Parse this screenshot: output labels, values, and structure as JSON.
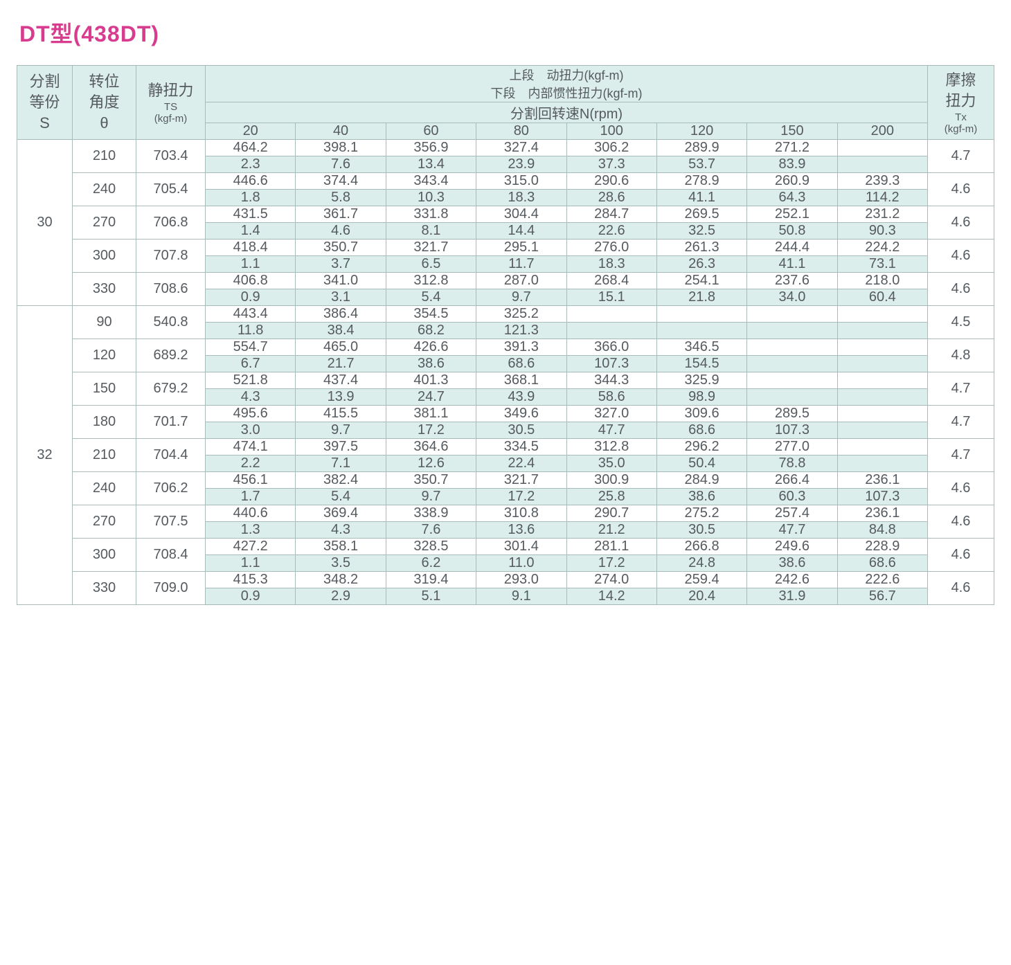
{
  "colors": {
    "title": "#d83c8f",
    "header_bg": "#dceeeb",
    "inertia_bg": "#dceeeb",
    "border": "#a7bbb9",
    "text": "#555a5f",
    "page_bg": "#ffffff"
  },
  "title": "DT型(438DT)",
  "headers": {
    "S_line1": "分割",
    "S_line2": "等份",
    "S_line3": "S",
    "theta_line1": "转位",
    "theta_line2": "角度",
    "theta_line3": "θ",
    "TS_line1": "静扭力",
    "TS_line2": "TS",
    "TS_line3": "(kgf-m)",
    "dyn_line1": "上段　动扭力(kgf-m)",
    "dyn_line2": "下段　内部惯性扭力(kgf-m)",
    "rpm_label": "分割回转速N(rpm)",
    "Tx_line1": "摩擦",
    "Tx_line2": "扭力",
    "Tx_line3": "Tx",
    "Tx_line4": "(kgf-m)"
  },
  "rpm_columns": [
    "20",
    "40",
    "60",
    "80",
    "100",
    "120",
    "150",
    "200"
  ],
  "groups": [
    {
      "S": "30",
      "rows": [
        {
          "theta": "210",
          "TS": "703.4",
          "Tx": "4.7",
          "dyn": [
            "464.2",
            "398.1",
            "356.9",
            "327.4",
            "306.2",
            "289.9",
            "271.2",
            ""
          ],
          "inertia": [
            "2.3",
            "7.6",
            "13.4",
            "23.9",
            "37.3",
            "53.7",
            "83.9",
            ""
          ]
        },
        {
          "theta": "240",
          "TS": "705.4",
          "Tx": "4.6",
          "dyn": [
            "446.6",
            "374.4",
            "343.4",
            "315.0",
            "290.6",
            "278.9",
            "260.9",
            "239.3"
          ],
          "inertia": [
            "1.8",
            "5.8",
            "10.3",
            "18.3",
            "28.6",
            "41.1",
            "64.3",
            "114.2"
          ]
        },
        {
          "theta": "270",
          "TS": "706.8",
          "Tx": "4.6",
          "dyn": [
            "431.5",
            "361.7",
            "331.8",
            "304.4",
            "284.7",
            "269.5",
            "252.1",
            "231.2"
          ],
          "inertia": [
            "1.4",
            "4.6",
            "8.1",
            "14.4",
            "22.6",
            "32.5",
            "50.8",
            "90.3"
          ]
        },
        {
          "theta": "300",
          "TS": "707.8",
          "Tx": "4.6",
          "dyn": [
            "418.4",
            "350.7",
            "321.7",
            "295.1",
            "276.0",
            "261.3",
            "244.4",
            "224.2"
          ],
          "inertia": [
            "1.1",
            "3.7",
            "6.5",
            "11.7",
            "18.3",
            "26.3",
            "41.1",
            "73.1"
          ]
        },
        {
          "theta": "330",
          "TS": "708.6",
          "Tx": "4.6",
          "dyn": [
            "406.8",
            "341.0",
            "312.8",
            "287.0",
            "268.4",
            "254.1",
            "237.6",
            "218.0"
          ],
          "inertia": [
            "0.9",
            "3.1",
            "5.4",
            "9.7",
            "15.1",
            "21.8",
            "34.0",
            "60.4"
          ]
        }
      ]
    },
    {
      "S": "32",
      "rows": [
        {
          "theta": "90",
          "TS": "540.8",
          "Tx": "4.5",
          "dyn": [
            "443.4",
            "386.4",
            "354.5",
            "325.2",
            "",
            "",
            "",
            ""
          ],
          "inertia": [
            "11.8",
            "38.4",
            "68.2",
            "121.3",
            "",
            "",
            "",
            ""
          ]
        },
        {
          "theta": "120",
          "TS": "689.2",
          "Tx": "4.8",
          "dyn": [
            "554.7",
            "465.0",
            "426.6",
            "391.3",
            "366.0",
            "346.5",
            "",
            ""
          ],
          "inertia": [
            "6.7",
            "21.7",
            "38.6",
            "68.6",
            "107.3",
            "154.5",
            "",
            ""
          ]
        },
        {
          "theta": "150",
          "TS": "679.2",
          "Tx": "4.7",
          "dyn": [
            "521.8",
            "437.4",
            "401.3",
            "368.1",
            "344.3",
            "325.9",
            "",
            ""
          ],
          "inertia": [
            "4.3",
            "13.9",
            "24.7",
            "43.9",
            "58.6",
            "98.9",
            "",
            ""
          ]
        },
        {
          "theta": "180",
          "TS": "701.7",
          "Tx": "4.7",
          "dyn": [
            "495.6",
            "415.5",
            "381.1",
            "349.6",
            "327.0",
            "309.6",
            "289.5",
            ""
          ],
          "inertia": [
            "3.0",
            "9.7",
            "17.2",
            "30.5",
            "47.7",
            "68.6",
            "107.3",
            ""
          ]
        },
        {
          "theta": "210",
          "TS": "704.4",
          "Tx": "4.7",
          "dyn": [
            "474.1",
            "397.5",
            "364.6",
            "334.5",
            "312.8",
            "296.2",
            "277.0",
            ""
          ],
          "inertia": [
            "2.2",
            "7.1",
            "12.6",
            "22.4",
            "35.0",
            "50.4",
            "78.8",
            ""
          ]
        },
        {
          "theta": "240",
          "TS": "706.2",
          "Tx": "4.6",
          "dyn": [
            "456.1",
            "382.4",
            "350.7",
            "321.7",
            "300.9",
            "284.9",
            "266.4",
            "236.1"
          ],
          "inertia": [
            "1.7",
            "5.4",
            "9.7",
            "17.2",
            "25.8",
            "38.6",
            "60.3",
            "107.3"
          ]
        },
        {
          "theta": "270",
          "TS": "707.5",
          "Tx": "4.6",
          "dyn": [
            "440.6",
            "369.4",
            "338.9",
            "310.8",
            "290.7",
            "275.2",
            "257.4",
            "236.1"
          ],
          "inertia": [
            "1.3",
            "4.3",
            "7.6",
            "13.6",
            "21.2",
            "30.5",
            "47.7",
            "84.8"
          ]
        },
        {
          "theta": "300",
          "TS": "708.4",
          "Tx": "4.6",
          "dyn": [
            "427.2",
            "358.1",
            "328.5",
            "301.4",
            "281.1",
            "266.8",
            "249.6",
            "228.9"
          ],
          "inertia": [
            "1.1",
            "3.5",
            "6.2",
            "11.0",
            "17.2",
            "24.8",
            "38.6",
            "68.6"
          ]
        },
        {
          "theta": "330",
          "TS": "709.0",
          "Tx": "4.6",
          "dyn": [
            "415.3",
            "348.2",
            "319.4",
            "293.0",
            "274.0",
            "259.4",
            "242.6",
            "222.6"
          ],
          "inertia": [
            "0.9",
            "2.9",
            "5.1",
            "9.1",
            "14.2",
            "20.4",
            "31.9",
            "56.7"
          ]
        }
      ]
    }
  ]
}
